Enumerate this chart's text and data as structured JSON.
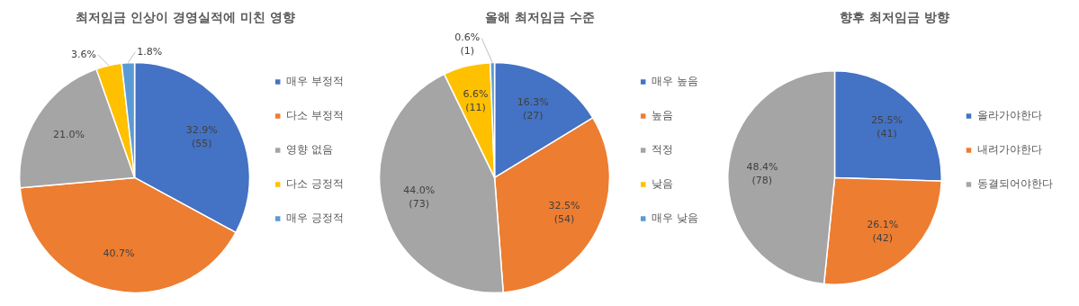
{
  "chart_data": [
    {
      "type": "pie",
      "title": "최저임금 인상이 경영실적에 미친 영향",
      "categories": [
        "매우 부정적",
        "다소 부정적",
        "영향 없음",
        "다소 긍정적",
        "매우 긍정적"
      ],
      "values": [
        32.9,
        40.7,
        21.0,
        3.6,
        1.8
      ],
      "colors": [
        "#4472c4",
        "#ed7d31",
        "#a5a5a5",
        "#ffc000",
        "#5b9bd5"
      ],
      "value_labels": [
        "32.9%\n(55)",
        "40.7%",
        "21.0%",
        "3.6%",
        "1.8%"
      ],
      "legend": "right"
    },
    {
      "type": "pie",
      "title": "올해 최저임금 수준",
      "categories": [
        "매우 높음",
        "높음",
        "적정",
        "낮음",
        "매우 낮음"
      ],
      "values": [
        16.3,
        32.5,
        44.0,
        6.6,
        0.6
      ],
      "colors": [
        "#4472c4",
        "#ed7d31",
        "#a5a5a5",
        "#ffc000",
        "#5b9bd5"
      ],
      "value_labels": [
        "16.3%\n(27)",
        "32.5%\n(54)",
        "44.0%\n(73)",
        "6.6%\n(11)",
        "0.6%\n(1)"
      ],
      "legend": "right"
    },
    {
      "type": "pie",
      "title": "향후 최저임금 방향",
      "categories": [
        "올라가야한다",
        "내려가야한다",
        "동결되어야한다"
      ],
      "values": [
        25.5,
        26.1,
        48.4
      ],
      "colors": [
        "#4472c4",
        "#ed7d31",
        "#a5a5a5"
      ],
      "value_labels": [
        "25.5%\n(41)",
        "26.1%\n(42)",
        "48.4%\n(78)"
      ],
      "legend": "right"
    }
  ]
}
